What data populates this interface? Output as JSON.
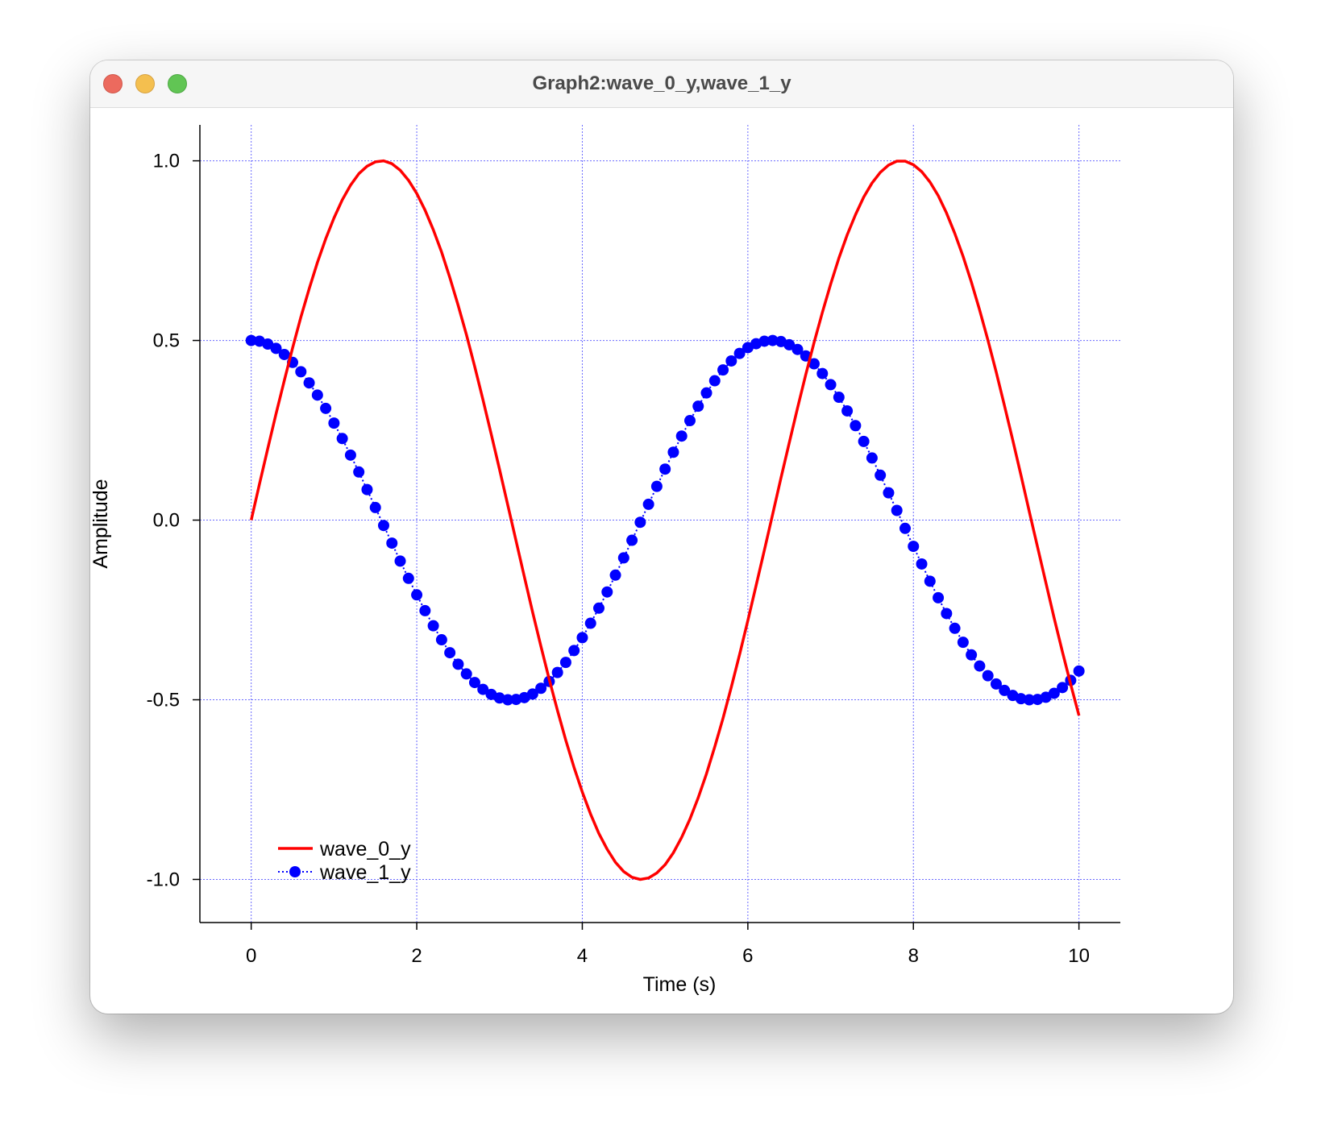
{
  "window": {
    "title": "Graph2:wave_0_y,wave_1_y"
  },
  "colors": {
    "wave_0_y": "#ff0000",
    "wave_1_y": "#0000ff",
    "grid": "#6a6aff"
  },
  "chart_data": {
    "type": "line",
    "title": "",
    "xlabel": "Time (s)",
    "ylabel": "Amplitude",
    "xlim": [
      -0.62,
      10.5
    ],
    "ylim": [
      -1.12,
      1.1
    ],
    "xticks": [
      0,
      2,
      4,
      6,
      8,
      10
    ],
    "xtick_labels": [
      "0",
      "2",
      "4",
      "6",
      "8",
      "10"
    ],
    "yticks": [
      1.0,
      0.5,
      0.0,
      -0.5,
      -1.0
    ],
    "ytick_labels": [
      "1.0",
      "0.5",
      "0.0",
      "-0.5",
      "-1.0"
    ],
    "grid": true,
    "legend_position": "bottom-left",
    "series": [
      {
        "name": "wave_0_y",
        "style": "solid line",
        "x": [
          0,
          0.1,
          0.2,
          0.3,
          0.4,
          0.5,
          0.6,
          0.7,
          0.8,
          0.9,
          1.0,
          1.1,
          1.2,
          1.3,
          1.4,
          1.5,
          1.6,
          1.7,
          1.8,
          1.9,
          2.0,
          2.1,
          2.2,
          2.3,
          2.4,
          2.5,
          2.6,
          2.7,
          2.8,
          2.9,
          3.0,
          3.1,
          3.2,
          3.3,
          3.4,
          3.5,
          3.6,
          3.7,
          3.8,
          3.9,
          4.0,
          4.1,
          4.2,
          4.3,
          4.4,
          4.5,
          4.6,
          4.7,
          4.8,
          4.9,
          5.0,
          5.1,
          5.2,
          5.3,
          5.4,
          5.5,
          5.6,
          5.7,
          5.8,
          5.9,
          6.0,
          6.1,
          6.2,
          6.3,
          6.4,
          6.5,
          6.6,
          6.7,
          6.8,
          6.9,
          7.0,
          7.1,
          7.2,
          7.3,
          7.4,
          7.5,
          7.6,
          7.7,
          7.8,
          7.9,
          8.0,
          8.1,
          8.2,
          8.3,
          8.4,
          8.5,
          8.6,
          8.7,
          8.8,
          8.9,
          9.0,
          9.1,
          9.2,
          9.3,
          9.4,
          9.5,
          9.6,
          9.7,
          9.8,
          9.9,
          10.0
        ],
        "y": [
          0.0,
          0.1,
          0.199,
          0.296,
          0.389,
          0.479,
          0.565,
          0.644,
          0.717,
          0.783,
          0.841,
          0.891,
          0.932,
          0.964,
          0.985,
          0.997,
          1.0,
          0.992,
          0.974,
          0.946,
          0.909,
          0.863,
          0.808,
          0.746,
          0.675,
          0.598,
          0.516,
          0.427,
          0.335,
          0.239,
          0.141,
          0.042,
          -0.058,
          -0.158,
          -0.256,
          -0.351,
          -0.443,
          -0.53,
          -0.612,
          -0.688,
          -0.757,
          -0.818,
          -0.872,
          -0.916,
          -0.952,
          -0.978,
          -0.994,
          -1.0,
          -0.996,
          -0.982,
          -0.959,
          -0.926,
          -0.883,
          -0.832,
          -0.773,
          -0.706,
          -0.631,
          -0.551,
          -0.465,
          -0.374,
          -0.279,
          -0.182,
          -0.083,
          0.017,
          0.117,
          0.215,
          0.312,
          0.405,
          0.494,
          0.578,
          0.657,
          0.729,
          0.794,
          0.85,
          0.899,
          0.938,
          0.968,
          0.988,
          0.999,
          0.999,
          0.989,
          0.97,
          0.941,
          0.903,
          0.855,
          0.798,
          0.734,
          0.663,
          0.585,
          0.501,
          0.412,
          0.319,
          0.223,
          0.124,
          0.024,
          -0.075,
          -0.174,
          -0.272,
          -0.366,
          -0.457,
          -0.544
        ]
      },
      {
        "name": "wave_1_y",
        "style": "dotted line with filled circle markers",
        "x": [
          0,
          0.1,
          0.2,
          0.3,
          0.4,
          0.5,
          0.6,
          0.7,
          0.8,
          0.9,
          1.0,
          1.1,
          1.2,
          1.3,
          1.4,
          1.5,
          1.6,
          1.7,
          1.8,
          1.9,
          2.0,
          2.1,
          2.2,
          2.3,
          2.4,
          2.5,
          2.6,
          2.7,
          2.8,
          2.9,
          3.0,
          3.1,
          3.2,
          3.3,
          3.4,
          3.5,
          3.6,
          3.7,
          3.8,
          3.9,
          4.0,
          4.1,
          4.2,
          4.3,
          4.4,
          4.5,
          4.6,
          4.7,
          4.8,
          4.9,
          5.0,
          5.1,
          5.2,
          5.3,
          5.4,
          5.5,
          5.6,
          5.7,
          5.8,
          5.9,
          6.0,
          6.1,
          6.2,
          6.3,
          6.4,
          6.5,
          6.6,
          6.7,
          6.8,
          6.9,
          7.0,
          7.1,
          7.2,
          7.3,
          7.4,
          7.5,
          7.6,
          7.7,
          7.8,
          7.9,
          8.0,
          8.1,
          8.2,
          8.3,
          8.4,
          8.5,
          8.6,
          8.7,
          8.8,
          8.9,
          9.0,
          9.1,
          9.2,
          9.3,
          9.4,
          9.5,
          9.6,
          9.7,
          9.8,
          9.9,
          10.0
        ],
        "y": [
          0.5,
          0.498,
          0.49,
          0.478,
          0.461,
          0.439,
          0.413,
          0.382,
          0.348,
          0.311,
          0.27,
          0.227,
          0.181,
          0.134,
          0.085,
          0.035,
          -0.015,
          -0.064,
          -0.114,
          -0.162,
          -0.208,
          -0.252,
          -0.294,
          -0.333,
          -0.369,
          -0.401,
          -0.428,
          -0.452,
          -0.471,
          -0.485,
          -0.495,
          -0.5,
          -0.499,
          -0.494,
          -0.484,
          -0.468,
          -0.449,
          -0.424,
          -0.396,
          -0.363,
          -0.327,
          -0.287,
          -0.245,
          -0.2,
          -0.153,
          -0.105,
          -0.056,
          -0.006,
          0.044,
          0.094,
          0.142,
          0.189,
          0.234,
          0.277,
          0.317,
          0.354,
          0.388,
          0.418,
          0.443,
          0.464,
          0.48,
          0.491,
          0.498,
          0.5,
          0.497,
          0.488,
          0.475,
          0.457,
          0.435,
          0.408,
          0.377,
          0.342,
          0.304,
          0.263,
          0.219,
          0.173,
          0.125,
          0.076,
          0.027,
          -0.023,
          -0.073,
          -0.122,
          -0.17,
          -0.216,
          -0.26,
          -0.301,
          -0.34,
          -0.375,
          -0.406,
          -0.433,
          -0.456,
          -0.474,
          -0.488,
          -0.497,
          -0.5,
          -0.499,
          -0.493,
          -0.482,
          -0.466,
          -0.446,
          -0.42
        ]
      }
    ]
  }
}
